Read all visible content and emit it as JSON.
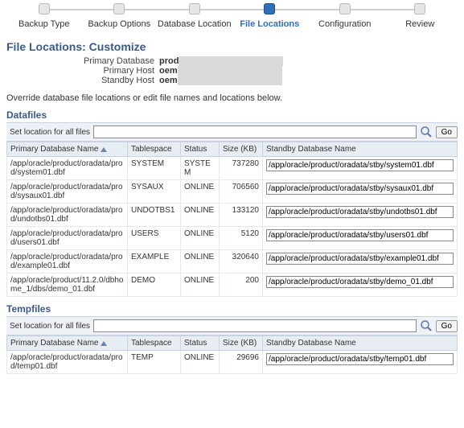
{
  "wizard": {
    "steps": [
      {
        "label": "Backup Type",
        "active": false
      },
      {
        "label": "Backup Options",
        "active": false
      },
      {
        "label": "Database Location",
        "active": false
      },
      {
        "label": "File Locations",
        "active": true
      },
      {
        "label": "Configuration",
        "active": false
      },
      {
        "label": "Review",
        "active": false
      }
    ]
  },
  "page": {
    "title": "File Locations: Customize",
    "primaryDatabaseLabel": "Primary Database",
    "primaryDatabaseValue": "prod",
    "primaryHostLabel": "Primary Host",
    "primaryHostValue": "oem",
    "standbyHostLabel": "Standby Host",
    "standbyHostValue": "oem",
    "overrideText": "Override database file locations or edit file names and locations below."
  },
  "sections": {
    "datafiles": {
      "title": "Datafiles",
      "locLabel": "Set location for all files",
      "goLabel": "Go",
      "cols": {
        "pdn": "Primary Database Name",
        "ts": "Tablespace",
        "status": "Status",
        "size": "Size (KB)",
        "sdn": "Standby Database Name"
      },
      "rows": [
        {
          "pdn": "/app/oracle/product/oradata/prod/system01.dbf",
          "ts": "SYSTEM",
          "status": "SYSTEM",
          "size": "737280",
          "sdn": "/app/oracle/product/oradata/stby/system01.dbf"
        },
        {
          "pdn": "/app/oracle/product/oradata/prod/sysaux01.dbf",
          "ts": "SYSAUX",
          "status": "ONLINE",
          "size": "706560",
          "sdn": "/app/oracle/product/oradata/stby/sysaux01.dbf"
        },
        {
          "pdn": "/app/oracle/product/oradata/prod/undotbs01.dbf",
          "ts": "UNDOTBS1",
          "status": "ONLINE",
          "size": "133120",
          "sdn": "/app/oracle/product/oradata/stby/undotbs01.dbf"
        },
        {
          "pdn": "/app/oracle/product/oradata/prod/users01.dbf",
          "ts": "USERS",
          "status": "ONLINE",
          "size": "5120",
          "sdn": "/app/oracle/product/oradata/stby/users01.dbf"
        },
        {
          "pdn": "/app/oracle/product/oradata/prod/example01.dbf",
          "ts": "EXAMPLE",
          "status": "ONLINE",
          "size": "320640",
          "sdn": "/app/oracle/product/oradata/stby/example01.dbf"
        },
        {
          "pdn": "/app/oracle/product/11.2.0/dbhome_1/dbs/demo_01.dbf",
          "ts": "DEMO",
          "status": "ONLINE",
          "size": "200",
          "sdn": "/app/oracle/product/oradata/stby/demo_01.dbf"
        }
      ]
    },
    "tempfiles": {
      "title": "Tempfiles",
      "locLabel": "Set location for all files",
      "goLabel": "Go",
      "cols": {
        "pdn": "Primary Database Name",
        "ts": "Tablespace",
        "status": "Status",
        "size": "Size (KB)",
        "sdn": "Standby Database Name"
      },
      "rows": [
        {
          "pdn": "/app/oracle/product/oradata/prod/temp01.dbf",
          "ts": "TEMP",
          "status": "ONLINE",
          "size": "29696",
          "sdn": "/app/oracle/product/oradata/stby/temp01.dbf"
        }
      ]
    }
  },
  "style": {
    "colwidths": {
      "pdn": "150",
      "ts": "66",
      "status": "48",
      "size": "54",
      "sdn": "auto"
    },
    "colors": {
      "accent": "#3A5A87",
      "headerbg": "#e8ecf3",
      "border": "#c9d2e0",
      "node": "#e6e6e6",
      "activenode": "#2f6fb7"
    }
  }
}
